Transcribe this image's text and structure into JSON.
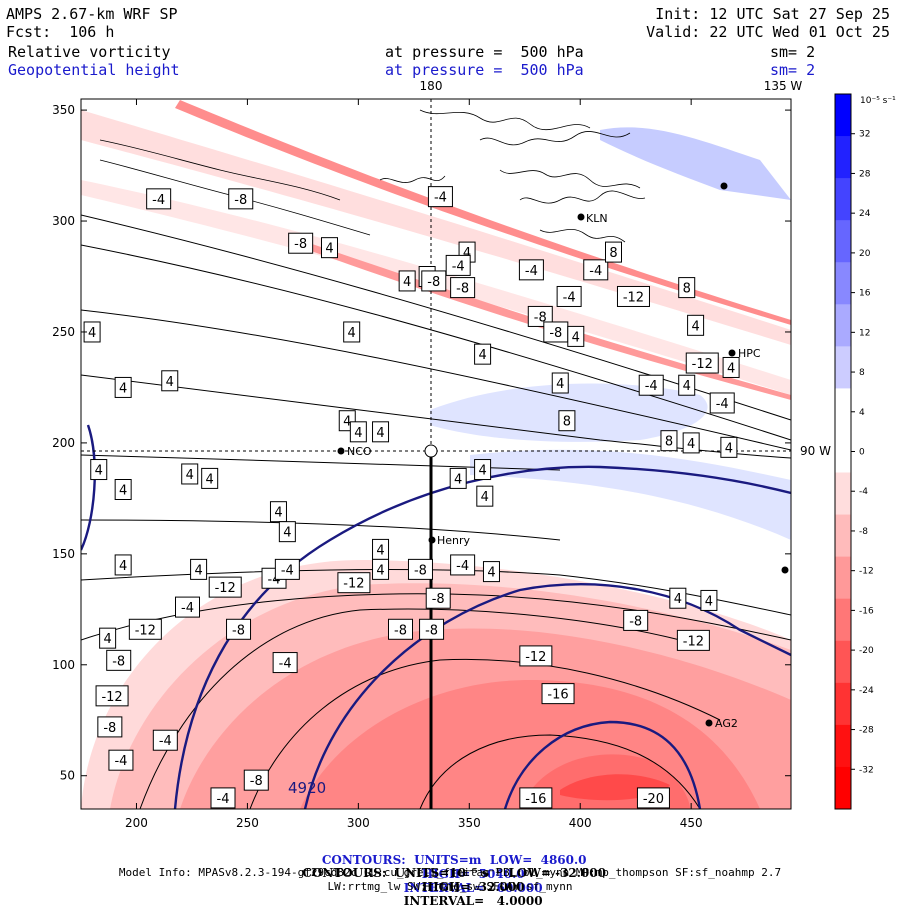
{
  "header": {
    "model": "AMPS 2.67-km WRF SP",
    "fcst": "Fcst:  106 h",
    "init": "Init: 12 UTC Sat 27 Sep 25",
    "valid": "Valid: 22 UTC Wed 01 Oct 25",
    "field1": "Relative vorticity",
    "field2": "Geopotential height",
    "pressure1": "at pressure =  500 hPa",
    "pressure2": "at pressure =  500 hPa",
    "sm1": "sm= 2",
    "sm2": "sm= 2"
  },
  "map": {
    "lon_180": "180",
    "lon_135w": "135 W",
    "lon_90w": "90 W",
    "stations": [
      "KLN",
      "NCO",
      "Henry",
      "AG2",
      "HPC"
    ]
  },
  "colorbar": {
    "unit": "10⁻⁵ s⁻¹",
    "ticks": [
      "32",
      "28",
      "24",
      "20",
      "16",
      "12",
      "8",
      "4",
      "0",
      "-4",
      "-8",
      "-12",
      "-16",
      "-20",
      "-24",
      "-28",
      "-32"
    ],
    "colors": [
      "#0000ff",
      "#2222ff",
      "#4444ff",
      "#6666ff",
      "#8888ff",
      "#aaaaff",
      "#ccccff",
      "#ffffff",
      "#ffffff",
      "#ffdddd",
      "#ffbbbb",
      "#ff9999",
      "#ff7777",
      "#ff5555",
      "#ff3333",
      "#ff1111",
      "#ff0000"
    ]
  },
  "footer": {
    "line1_a": "CONTOURS:  UNITS=m  LOW=  4860.0",
    "line1_b": "HIGH=  5040.0",
    "line1_c": "INTERVAL=   60.000",
    "line2_a": "CONTOURS:  UNITS=10⁻⁵ s⁻¹  LOW= -32.000",
    "line2_b": "HIGH=  32.000",
    "line2_c": "INTERVAL=   4.0000",
    "line3": "Model Info: MPASv8.2.3-194-gf29cd82c CU:cu_grell_freitas PBL:bl_mynn MP:mp_thompson SF:sf_noahmp 2.7",
    "line4": "LW:rrtmg_lw SW:rrtmg_sw SFLAY:sf_mynn"
  },
  "chart_data": {
    "type": "heatmap",
    "title": "Relative vorticity / Geopotential height at 500 hPa",
    "x_ticks": [
      200,
      250,
      300,
      350,
      400,
      450
    ],
    "y_ticks": [
      50,
      100,
      150,
      200,
      250,
      300,
      350
    ],
    "xlim": [
      175,
      495
    ],
    "ylim": [
      35,
      355
    ],
    "height_contour_label": "4920",
    "vorticity_labels": [
      {
        "x": 210,
        "y": 310,
        "v": "-4"
      },
      {
        "x": 247,
        "y": 310,
        "v": "-8"
      },
      {
        "x": 274,
        "y": 290,
        "v": "-8"
      },
      {
        "x": 287,
        "y": 288,
        "v": "4"
      },
      {
        "x": 337,
        "y": 311,
        "v": "-4"
      },
      {
        "x": 349,
        "y": 286,
        "v": "4"
      },
      {
        "x": 345,
        "y": 280,
        "v": "-4"
      },
      {
        "x": 331,
        "y": 275,
        "v": "4"
      },
      {
        "x": 322,
        "y": 273,
        "v": "4"
      },
      {
        "x": 334,
        "y": 273,
        "v": "-8"
      },
      {
        "x": 347,
        "y": 270,
        "v": "-8"
      },
      {
        "x": 378,
        "y": 278,
        "v": "-4"
      },
      {
        "x": 407,
        "y": 278,
        "v": "-4"
      },
      {
        "x": 395,
        "y": 266,
        "v": "-4"
      },
      {
        "x": 424,
        "y": 266,
        "v": "-12"
      },
      {
        "x": 448,
        "y": 270,
        "v": "8"
      },
      {
        "x": 415,
        "y": 286,
        "v": "8"
      },
      {
        "x": 382,
        "y": 257,
        "v": "-8"
      },
      {
        "x": 389,
        "y": 250,
        "v": "-8"
      },
      {
        "x": 398,
        "y": 248,
        "v": "4"
      },
      {
        "x": 455,
        "y": 236,
        "v": "-12"
      },
      {
        "x": 468,
        "y": 234,
        "v": "4"
      },
      {
        "x": 452,
        "y": 253,
        "v": "4"
      },
      {
        "x": 356,
        "y": 240,
        "v": "4"
      },
      {
        "x": 432,
        "y": 226,
        "v": "-4"
      },
      {
        "x": 448,
        "y": 226,
        "v": "4"
      },
      {
        "x": 464,
        "y": 218,
        "v": "-4"
      },
      {
        "x": 391,
        "y": 227,
        "v": "4"
      },
      {
        "x": 394,
        "y": 210,
        "v": "8"
      },
      {
        "x": 180,
        "y": 250,
        "v": "4"
      },
      {
        "x": 297,
        "y": 250,
        "v": "4"
      },
      {
        "x": 215,
        "y": 228,
        "v": "4"
      },
      {
        "x": 194,
        "y": 225,
        "v": "4"
      },
      {
        "x": 295,
        "y": 210,
        "v": "4"
      },
      {
        "x": 300,
        "y": 205,
        "v": "4"
      },
      {
        "x": 310,
        "y": 205,
        "v": "4"
      },
      {
        "x": 440,
        "y": 201,
        "v": "8"
      },
      {
        "x": 450,
        "y": 200,
        "v": "4"
      },
      {
        "x": 467,
        "y": 198,
        "v": "4"
      },
      {
        "x": 183,
        "y": 188,
        "v": "4"
      },
      {
        "x": 224,
        "y": 186,
        "v": "4"
      },
      {
        "x": 233,
        "y": 184,
        "v": "4"
      },
      {
        "x": 194,
        "y": 179,
        "v": "4"
      },
      {
        "x": 356,
        "y": 188,
        "v": "4"
      },
      {
        "x": 345,
        "y": 184,
        "v": "4"
      },
      {
        "x": 357,
        "y": 176,
        "v": "4"
      },
      {
        "x": 264,
        "y": 169,
        "v": "4"
      },
      {
        "x": 268,
        "y": 160,
        "v": "4"
      },
      {
        "x": 194,
        "y": 145,
        "v": "4"
      },
      {
        "x": 310,
        "y": 152,
        "v": "4"
      },
      {
        "x": 310,
        "y": 143,
        "v": "4"
      },
      {
        "x": 262,
        "y": 139,
        "v": "-4"
      },
      {
        "x": 268,
        "y": 143,
        "v": "-4"
      },
      {
        "x": 328,
        "y": 143,
        "v": "-8"
      },
      {
        "x": 347,
        "y": 145,
        "v": "-4"
      },
      {
        "x": 360,
        "y": 142,
        "v": "4"
      },
      {
        "x": 228,
        "y": 143,
        "v": "4"
      },
      {
        "x": 240,
        "y": 135,
        "v": "-12"
      },
      {
        "x": 298,
        "y": 137,
        "v": "-12"
      },
      {
        "x": 336,
        "y": 130,
        "v": "-8"
      },
      {
        "x": 223,
        "y": 126,
        "v": "-4"
      },
      {
        "x": 246,
        "y": 116,
        "v": "-8"
      },
      {
        "x": 204,
        "y": 116,
        "v": "-12"
      },
      {
        "x": 187,
        "y": 112,
        "v": "4"
      },
      {
        "x": 319,
        "y": 116,
        "v": "-8"
      },
      {
        "x": 333,
        "y": 116,
        "v": "-8"
      },
      {
        "x": 425,
        "y": 120,
        "v": "-8"
      },
      {
        "x": 444,
        "y": 130,
        "v": "4"
      },
      {
        "x": 458,
        "y": 129,
        "v": "4"
      },
      {
        "x": 451,
        "y": 111,
        "v": "-12"
      },
      {
        "x": 380,
        "y": 104,
        "v": "-12"
      },
      {
        "x": 267,
        "y": 101,
        "v": "-4"
      },
      {
        "x": 192,
        "y": 102,
        "v": "-8"
      },
      {
        "x": 189,
        "y": 86,
        "v": "-12"
      },
      {
        "x": 188,
        "y": 72,
        "v": "-8"
      },
      {
        "x": 193,
        "y": 57,
        "v": "-4"
      },
      {
        "x": 213,
        "y": 66,
        "v": "-4"
      },
      {
        "x": 254,
        "y": 48,
        "v": "-8"
      },
      {
        "x": 239,
        "y": 40,
        "v": "-4"
      },
      {
        "x": 390,
        "y": 87,
        "v": "-16"
      },
      {
        "x": 380,
        "y": 40,
        "v": "-16"
      },
      {
        "x": 433,
        "y": 40,
        "v": "-20"
      }
    ]
  }
}
